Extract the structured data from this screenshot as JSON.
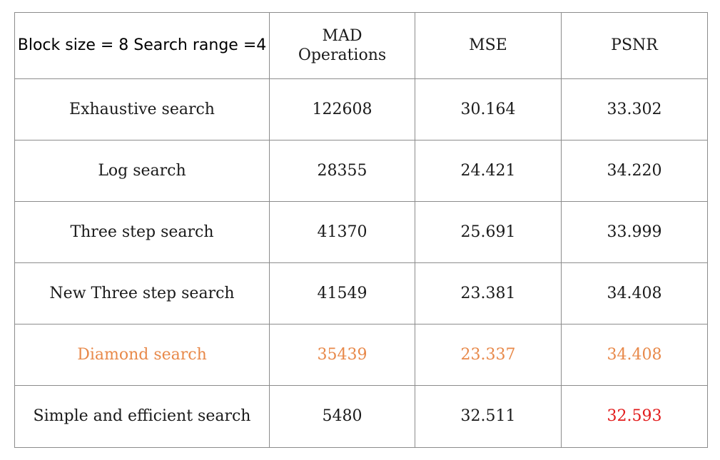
{
  "table": {
    "config_label": "Block size = 8 Search range =4",
    "headers": {
      "operations_line1": "MAD",
      "operations_line2": "Operations",
      "mse": "MSE",
      "psnr": "PSNR"
    },
    "rows": [
      {
        "method": "Exhaustive search",
        "operations": "122608",
        "mse": "30.164",
        "psnr": "33.302"
      },
      {
        "method": "Log search",
        "operations": "28355",
        "mse": "24.421",
        "psnr": "34.220"
      },
      {
        "method": "Three step search",
        "operations": "41370",
        "mse": "25.691",
        "psnr": "33.999"
      },
      {
        "method": "New Three step search",
        "operations": "41549",
        "mse": "23.381",
        "psnr": "34.408"
      },
      {
        "method": "Diamond search",
        "operations": "35439",
        "mse": "23.337",
        "psnr": "34.408"
      },
      {
        "method": "Simple and efficient search",
        "operations": "5480",
        "mse": "32.511",
        "psnr": "32.593"
      }
    ]
  },
  "colors": {
    "highlight_orange": "#e8894a",
    "highlight_red": "#e21b1b",
    "text": "#1a1a1a",
    "border": "#8c8c8c"
  }
}
